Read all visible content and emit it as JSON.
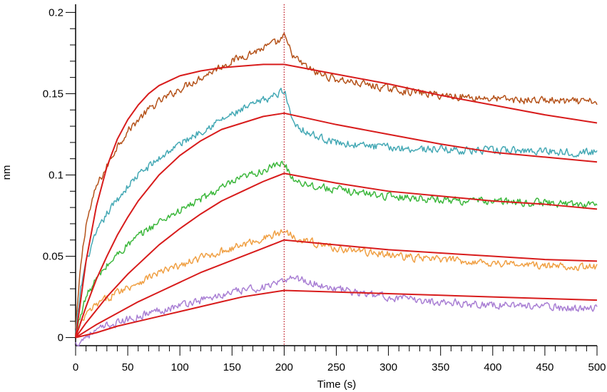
{
  "chart_data": {
    "type": "line",
    "title": "",
    "xlabel": "Time (s)",
    "ylabel": "nm",
    "xlim": [
      0,
      500
    ],
    "ylim": [
      -0.005,
      0.205
    ],
    "x_ticks": [
      0,
      50,
      100,
      150,
      200,
      250,
      300,
      350,
      400,
      450,
      500
    ],
    "x_tick_labels": [
      "0",
      "50",
      "100",
      "150",
      "200",
      "250",
      "300",
      "350",
      "400",
      "450",
      "500"
    ],
    "y_ticks": [
      0,
      0.05,
      0.1,
      0.15,
      0.2
    ],
    "y_tick_labels": [
      "0",
      "0.05",
      "0.1",
      "0.15",
      "0.2"
    ],
    "grid": false,
    "legend": "none",
    "vertical_marker": {
      "x": 200,
      "color": "#c0202a",
      "style": "dotted"
    },
    "fit_color": "#d81c1c",
    "series": [
      {
        "color": "#b5531b",
        "kind": "measured",
        "x": [
          0,
          5,
          10,
          20,
          30,
          40,
          50,
          60,
          70,
          80,
          90,
          100,
          120,
          140,
          160,
          180,
          195,
          200,
          205,
          210,
          220,
          230,
          250,
          275,
          300,
          325,
          350,
          375,
          400,
          425,
          450,
          475,
          500
        ],
        "y": [
          0.005,
          0.045,
          0.07,
          0.093,
          0.105,
          0.118,
          0.127,
          0.134,
          0.14,
          0.145,
          0.149,
          0.153,
          0.16,
          0.167,
          0.173,
          0.178,
          0.182,
          0.185,
          0.178,
          0.172,
          0.167,
          0.163,
          0.159,
          0.156,
          0.153,
          0.151,
          0.149,
          0.148,
          0.147,
          0.146,
          0.146,
          0.145,
          0.145
        ]
      },
      {
        "color": "#45a9b5",
        "kind": "measured",
        "x": [
          0,
          5,
          10,
          20,
          30,
          40,
          50,
          60,
          70,
          80,
          90,
          100,
          120,
          140,
          160,
          180,
          195,
          200,
          205,
          210,
          220,
          230,
          250,
          275,
          300,
          325,
          350,
          375,
          400,
          425,
          450,
          475,
          500
        ],
        "y": [
          0.002,
          0.03,
          0.047,
          0.064,
          0.076,
          0.085,
          0.093,
          0.1,
          0.105,
          0.11,
          0.115,
          0.119,
          0.127,
          0.134,
          0.14,
          0.146,
          0.15,
          0.153,
          0.14,
          0.132,
          0.127,
          0.124,
          0.12,
          0.118,
          0.117,
          0.116,
          0.116,
          0.115,
          0.115,
          0.115,
          0.115,
          0.114,
          0.114
        ]
      },
      {
        "color": "#3db83d",
        "kind": "measured",
        "x": [
          0,
          5,
          10,
          20,
          30,
          40,
          50,
          60,
          70,
          80,
          90,
          100,
          120,
          140,
          160,
          180,
          195,
          200,
          205,
          210,
          220,
          230,
          250,
          275,
          300,
          325,
          350,
          375,
          400,
          425,
          450,
          475,
          500
        ],
        "y": [
          0.001,
          0.015,
          0.025,
          0.036,
          0.044,
          0.051,
          0.057,
          0.062,
          0.067,
          0.071,
          0.075,
          0.078,
          0.085,
          0.092,
          0.098,
          0.103,
          0.106,
          0.108,
          0.101,
          0.097,
          0.095,
          0.093,
          0.091,
          0.089,
          0.087,
          0.086,
          0.085,
          0.084,
          0.084,
          0.083,
          0.083,
          0.082,
          0.082
        ]
      },
      {
        "color": "#f0a044",
        "kind": "measured",
        "x": [
          0,
          5,
          10,
          20,
          30,
          40,
          50,
          60,
          70,
          80,
          90,
          100,
          120,
          140,
          160,
          180,
          195,
          200,
          205,
          210,
          220,
          230,
          250,
          275,
          300,
          325,
          350,
          375,
          400,
          425,
          450,
          475,
          500
        ],
        "y": [
          0.0,
          0.008,
          0.014,
          0.02,
          0.024,
          0.028,
          0.031,
          0.034,
          0.037,
          0.04,
          0.042,
          0.044,
          0.049,
          0.053,
          0.057,
          0.061,
          0.064,
          0.066,
          0.064,
          0.062,
          0.06,
          0.058,
          0.055,
          0.053,
          0.051,
          0.049,
          0.048,
          0.047,
          0.046,
          0.045,
          0.044,
          0.044,
          0.043
        ]
      },
      {
        "color": "#a97fd4",
        "kind": "measured",
        "x": [
          0,
          5,
          10,
          20,
          30,
          40,
          50,
          60,
          70,
          80,
          90,
          100,
          120,
          140,
          160,
          180,
          195,
          200,
          205,
          210,
          220,
          230,
          250,
          275,
          300,
          325,
          350,
          375,
          400,
          425,
          450,
          475,
          500
        ],
        "y": [
          -0.004,
          -0.002,
          0.001,
          0.004,
          0.007,
          0.009,
          0.011,
          0.013,
          0.015,
          0.017,
          0.018,
          0.02,
          0.023,
          0.026,
          0.029,
          0.031,
          0.033,
          0.034,
          0.038,
          0.037,
          0.035,
          0.033,
          0.03,
          0.027,
          0.025,
          0.023,
          0.022,
          0.021,
          0.02,
          0.02,
          0.019,
          0.018,
          0.018
        ]
      },
      {
        "color": "#d81c1c",
        "kind": "fit",
        "x": [
          0,
          10,
          20,
          30,
          40,
          50,
          60,
          70,
          80,
          90,
          100,
          120,
          140,
          160,
          180,
          200,
          250,
          300,
          350,
          400,
          450,
          500
        ],
        "y": [
          0.0,
          0.047,
          0.081,
          0.105,
          0.122,
          0.134,
          0.143,
          0.15,
          0.155,
          0.158,
          0.161,
          0.164,
          0.166,
          0.167,
          0.168,
          0.168,
          0.162,
          0.156,
          0.149,
          0.143,
          0.137,
          0.132
        ]
      },
      {
        "color": "#d81c1c",
        "kind": "fit",
        "x": [
          0,
          10,
          20,
          30,
          40,
          50,
          60,
          70,
          80,
          90,
          100,
          120,
          140,
          160,
          180,
          200,
          250,
          300,
          350,
          400,
          450,
          500
        ],
        "y": [
          0.0,
          0.019,
          0.036,
          0.05,
          0.063,
          0.074,
          0.084,
          0.092,
          0.1,
          0.106,
          0.112,
          0.121,
          0.128,
          0.132,
          0.136,
          0.138,
          0.131,
          0.125,
          0.119,
          0.114,
          0.111,
          0.108
        ]
      },
      {
        "color": "#d81c1c",
        "kind": "fit",
        "x": [
          0,
          10,
          20,
          30,
          40,
          50,
          60,
          70,
          80,
          90,
          100,
          120,
          140,
          160,
          180,
          200,
          250,
          300,
          350,
          400,
          450,
          500
        ],
        "y": [
          0.0,
          0.009,
          0.017,
          0.025,
          0.032,
          0.039,
          0.045,
          0.051,
          0.057,
          0.062,
          0.067,
          0.076,
          0.084,
          0.09,
          0.096,
          0.101,
          0.095,
          0.09,
          0.087,
          0.084,
          0.082,
          0.079
        ]
      },
      {
        "color": "#d81c1c",
        "kind": "fit",
        "x": [
          0,
          20,
          40,
          60,
          80,
          100,
          120,
          140,
          160,
          180,
          200,
          250,
          300,
          350,
          400,
          450,
          500
        ],
        "y": [
          0.0,
          0.008,
          0.015,
          0.022,
          0.028,
          0.034,
          0.04,
          0.045,
          0.05,
          0.055,
          0.06,
          0.057,
          0.054,
          0.052,
          0.05,
          0.048,
          0.047
        ]
      },
      {
        "color": "#d81c1c",
        "kind": "fit",
        "x": [
          0,
          20,
          40,
          60,
          80,
          100,
          120,
          140,
          160,
          180,
          200,
          250,
          300,
          350,
          400,
          450,
          500
        ],
        "y": [
          0.0,
          0.003,
          0.007,
          0.01,
          0.013,
          0.016,
          0.019,
          0.022,
          0.025,
          0.027,
          0.029,
          0.028,
          0.027,
          0.026,
          0.025,
          0.024,
          0.023
        ]
      }
    ]
  }
}
